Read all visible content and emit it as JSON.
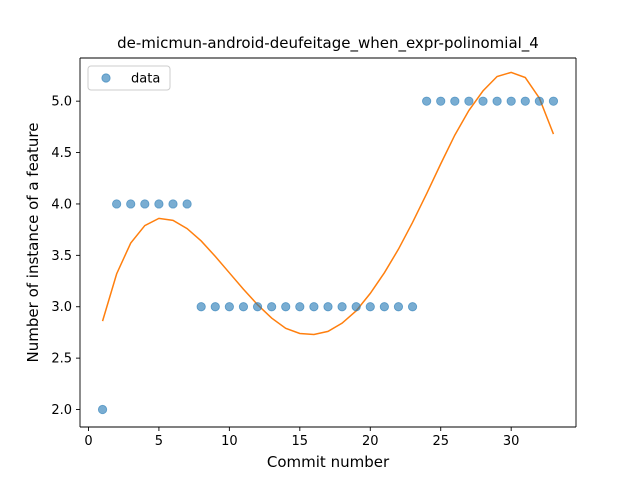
{
  "chart_data": {
    "type": "scatter",
    "title": "de-micmun-android-deufeitage_when_expr-polinomial_4",
    "xlabel": "Commit number",
    "ylabel": "Number of instance of a feature",
    "xlim": [
      -0.6,
      34.6
    ],
    "ylim": [
      1.83,
      5.42
    ],
    "xticks": [
      0,
      5,
      10,
      15,
      20,
      25,
      30
    ],
    "yticks": [
      2.0,
      2.5,
      3.0,
      3.5,
      4.0,
      4.5,
      5.0
    ],
    "ytick_labels": [
      "2.0",
      "2.5",
      "3.0",
      "3.5",
      "4.0",
      "4.5",
      "5.0"
    ],
    "legend": {
      "position": "upper-left",
      "entries": [
        "data"
      ]
    },
    "grid": false,
    "series": [
      {
        "name": "data",
        "kind": "scatter",
        "color": "#1f77b4",
        "x": [
          1,
          2,
          3,
          4,
          5,
          6,
          7,
          8,
          9,
          10,
          11,
          12,
          13,
          14,
          15,
          16,
          17,
          18,
          19,
          20,
          21,
          22,
          23,
          24,
          25,
          26,
          27,
          28,
          29,
          30,
          31,
          32,
          33
        ],
        "y": [
          2,
          4,
          4,
          4,
          4,
          4,
          4,
          3,
          3,
          3,
          3,
          3,
          3,
          3,
          3,
          3,
          3,
          3,
          3,
          3,
          3,
          3,
          3,
          5,
          5,
          5,
          5,
          5,
          5,
          5,
          5,
          5,
          5
        ]
      },
      {
        "kind": "line",
        "color": "#ff7f0e",
        "x": [
          1,
          2,
          3,
          4,
          5,
          6,
          7,
          8,
          9,
          10,
          11,
          12,
          13,
          14,
          15,
          16,
          17,
          18,
          19,
          20,
          21,
          22,
          23,
          24,
          25,
          26,
          27,
          28,
          29,
          30,
          31,
          32,
          33
        ],
        "y": [
          2.86,
          3.32,
          3.62,
          3.79,
          3.86,
          3.84,
          3.76,
          3.64,
          3.49,
          3.33,
          3.17,
          3.02,
          2.89,
          2.79,
          2.74,
          2.73,
          2.76,
          2.84,
          2.96,
          3.13,
          3.33,
          3.56,
          3.82,
          4.1,
          4.39,
          4.67,
          4.91,
          5.1,
          5.24,
          5.28,
          5.23,
          5.03,
          4.68
        ]
      }
    ]
  }
}
